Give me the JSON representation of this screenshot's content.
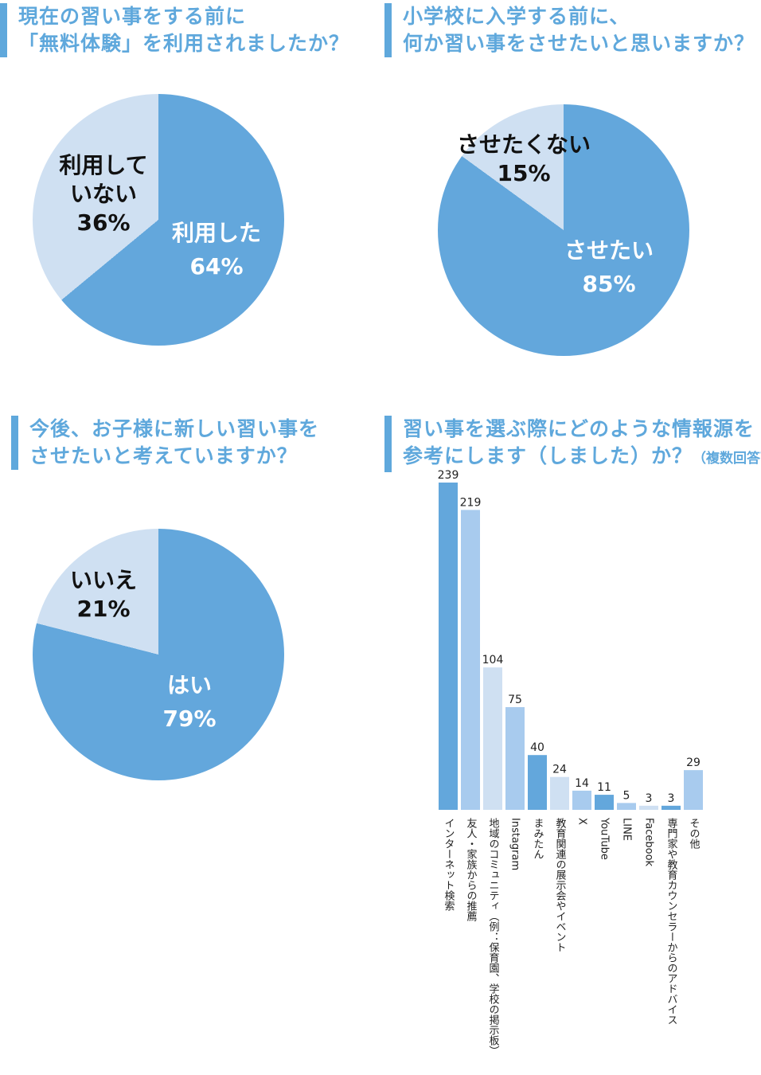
{
  "colors": {
    "accent": "#5fa8dc",
    "pie_main": "#63a7dc",
    "pie_minor": "#cfe0f2",
    "bar_colors": [
      "#63a7dc",
      "#a8cbee",
      "#cfe0f2"
    ]
  },
  "panels": {
    "q1": {
      "title_lines": [
        "現在の習い事をする前に",
        "「無料体験」を利用されましたか？"
      ]
    },
    "q2": {
      "title_lines": [
        "小学校に入学する前に、",
        "何か習い事をさせたいと思いますか？"
      ]
    },
    "q3": {
      "title_lines": [
        "今後、お子様に新しい習い事を",
        "させたいと考えていますか？"
      ]
    },
    "q4": {
      "title_lines": [
        "習い事を選ぶ際にどのような情報源を",
        "参考にします（しました）か？"
      ],
      "title_note": "（複数回答可）"
    }
  },
  "chart_data": [
    {
      "type": "pie",
      "slices": [
        {
          "label_lines": [
            "利用した"
          ],
          "value": 64,
          "value_text": "64%",
          "color": "#63a7dc"
        },
        {
          "label_lines": [
            "利用して",
            "いない"
          ],
          "value": 36,
          "value_text": "36%",
          "color": "#cfe0f2"
        }
      ]
    },
    {
      "type": "pie",
      "slices": [
        {
          "label_lines": [
            "させたい"
          ],
          "value": 85,
          "value_text": "85%",
          "color": "#63a7dc"
        },
        {
          "label_lines": [
            "させたくない"
          ],
          "value": 15,
          "value_text": "15%",
          "color": "#cfe0f2"
        }
      ]
    },
    {
      "type": "pie",
      "slices": [
        {
          "label_lines": [
            "はい"
          ],
          "value": 79,
          "value_text": "79%",
          "color": "#63a7dc"
        },
        {
          "label_lines": [
            "いいえ"
          ],
          "value": 21,
          "value_text": "21%",
          "color": "#cfe0f2"
        }
      ]
    },
    {
      "type": "bar",
      "categories": [
        "インターネット検索",
        "友人・家族からの推薦",
        "地域のコミュニティ（例：保育園、学校の掲示板）",
        "Instagram",
        "まみたん",
        "教育関連の展示会やイベント",
        "X",
        "YouTube",
        "LINE",
        "Facebook",
        "専門家や教育カウンセラーからのアドバイス",
        "その他"
      ],
      "values": [
        239,
        219,
        104,
        75,
        40,
        24,
        14,
        11,
        5,
        3,
        3,
        29
      ],
      "bar_color_index": [
        0,
        1,
        2,
        1,
        0,
        2,
        1,
        0,
        1,
        2,
        0,
        1
      ],
      "ylim": [
        0,
        239
      ]
    }
  ]
}
